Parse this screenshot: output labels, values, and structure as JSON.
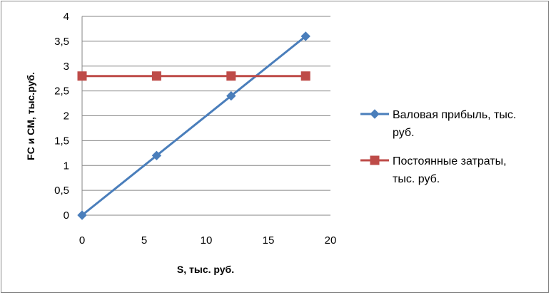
{
  "chart_data": {
    "type": "line",
    "title": "",
    "xlabel": "S,  тыс. руб.",
    "ylabel": "FC и CM, тыс.руб.",
    "xlim": [
      0,
      20
    ],
    "ylim": [
      0,
      4
    ],
    "x_ticks": [
      "0",
      "5",
      "10",
      "15",
      "20"
    ],
    "y_ticks": [
      "0",
      "0,5",
      "1",
      "1,5",
      "2",
      "2,5",
      "3",
      "3,5",
      "4"
    ],
    "grid": "horizontal",
    "legend_position": "right",
    "series": [
      {
        "name_lines": [
          "Валовая прибыль, тыс.",
          "руб."
        ],
        "color": "#4a7ebb",
        "marker": "diamond",
        "x": [
          0,
          6,
          12,
          18
        ],
        "y": [
          0,
          1.2,
          2.4,
          3.6
        ]
      },
      {
        "name_lines": [
          "Постоянные затраты,",
          "тыс. руб."
        ],
        "color": "#be4b48",
        "marker": "square",
        "x": [
          0,
          6,
          12,
          18
        ],
        "y": [
          2.8,
          2.8,
          2.8,
          2.8
        ]
      }
    ]
  }
}
